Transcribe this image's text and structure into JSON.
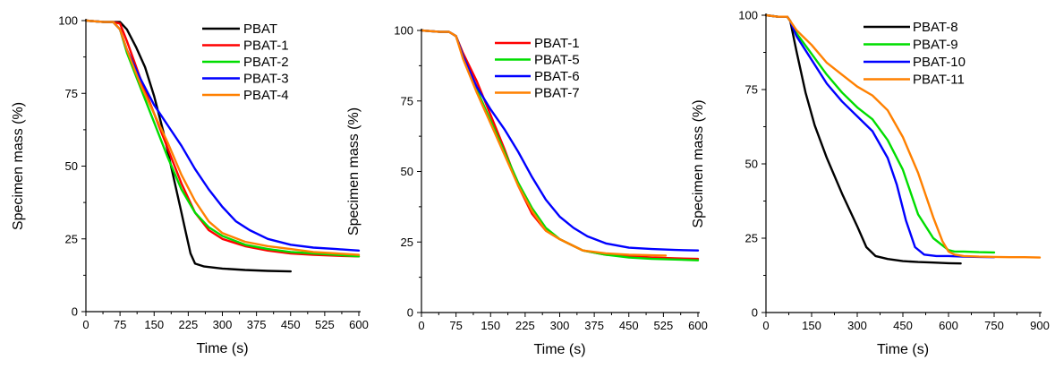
{
  "chart_data": [
    {
      "type": "line",
      "xlabel": "Time (s)",
      "ylabel": "Specimen mass (%)",
      "xlim": [
        0,
        600
      ],
      "ylim": [
        0,
        100
      ],
      "xticks": [
        0,
        75,
        150,
        225,
        300,
        375,
        450,
        525,
        600
      ],
      "yticks": [
        0,
        25,
        50,
        75,
        100
      ],
      "legend_position": "top-right",
      "series": [
        {
          "name": "PBAT",
          "color": "#000000",
          "x": [
            0,
            40,
            60,
            75,
            90,
            110,
            130,
            150,
            170,
            180,
            190,
            200,
            210,
            220,
            230,
            240,
            260,
            300,
            350,
            400,
            450
          ],
          "y": [
            100,
            99.5,
            99.5,
            99.5,
            97,
            91,
            84,
            74,
            62,
            55,
            48,
            41,
            34,
            27,
            20,
            16.5,
            15.5,
            14.8,
            14.3,
            14,
            13.8
          ]
        },
        {
          "name": "PBAT-1",
          "color": "#ff0000",
          "x": [
            0,
            40,
            60,
            75,
            90,
            120,
            150,
            180,
            210,
            240,
            270,
            300,
            350,
            400,
            450,
            500,
            550,
            600
          ],
          "y": [
            100,
            99.5,
            99.5,
            99,
            93,
            80,
            68,
            56,
            44,
            34,
            28,
            25,
            22.5,
            21,
            20,
            19.5,
            19.2,
            19
          ]
        },
        {
          "name": "PBAT-2",
          "color": "#00dd00",
          "x": [
            0,
            40,
            60,
            75,
            90,
            120,
            150,
            180,
            210,
            240,
            270,
            300,
            350,
            400,
            450,
            500,
            550,
            600
          ],
          "y": [
            100,
            99.5,
            99.5,
            97,
            89,
            77,
            65,
            53,
            42,
            34,
            29,
            26,
            23,
            21.5,
            20.5,
            20,
            19.5,
            19
          ]
        },
        {
          "name": "PBAT-3",
          "color": "#0000ff",
          "x": [
            0,
            40,
            60,
            75,
            90,
            120,
            150,
            180,
            210,
            240,
            270,
            300,
            330,
            360,
            400,
            450,
            500,
            550,
            600
          ],
          "y": [
            100,
            99.5,
            99.5,
            97,
            90,
            80,
            71,
            64,
            57,
            49,
            42,
            36,
            31,
            28,
            25,
            23,
            22,
            21.5,
            21
          ]
        },
        {
          "name": "PBAT-4",
          "color": "#ff8000",
          "x": [
            0,
            40,
            60,
            75,
            90,
            120,
            150,
            180,
            210,
            240,
            270,
            300,
            350,
            400,
            450,
            500,
            550,
            600
          ],
          "y": [
            100,
            99.5,
            99.5,
            97,
            90,
            78,
            68,
            58,
            47,
            38,
            31,
            27,
            24,
            22.5,
            21.5,
            20.5,
            20,
            19.5
          ]
        }
      ]
    },
    {
      "type": "line",
      "xlabel": "Time (s)",
      "ylabel": "Specimen mass (%)",
      "xlim": [
        0,
        600
      ],
      "ylim": [
        0,
        100
      ],
      "xticks": [
        0,
        75,
        150,
        225,
        300,
        375,
        450,
        525,
        600
      ],
      "yticks": [
        0,
        25,
        50,
        75,
        100
      ],
      "legend_position": "top-right",
      "series": [
        {
          "name": "PBAT-1",
          "color": "#ff0000",
          "x": [
            0,
            40,
            60,
            75,
            90,
            120,
            150,
            180,
            210,
            240,
            270,
            300,
            350,
            400,
            450,
            500,
            550,
            600
          ],
          "y": [
            100,
            99.5,
            99.5,
            98,
            92,
            82,
            70,
            58,
            45,
            35,
            29,
            26,
            22,
            20.5,
            20,
            19.5,
            19.2,
            19
          ]
        },
        {
          "name": "PBAT-5",
          "color": "#00dd00",
          "x": [
            0,
            40,
            60,
            75,
            90,
            120,
            150,
            180,
            210,
            240,
            270,
            300,
            350,
            400,
            450,
            500,
            550,
            600
          ],
          "y": [
            100,
            99.5,
            99.5,
            98,
            91,
            79,
            68,
            57,
            46,
            37,
            30,
            26,
            22,
            20.5,
            19.5,
            19,
            18.8,
            18.5
          ]
        },
        {
          "name": "PBAT-6",
          "color": "#0000ff",
          "x": [
            0,
            40,
            60,
            75,
            90,
            120,
            150,
            180,
            210,
            240,
            270,
            300,
            330,
            360,
            400,
            450,
            500,
            550,
            600
          ],
          "y": [
            100,
            99.5,
            99.5,
            98,
            91,
            80,
            72,
            65,
            57,
            48,
            40,
            34,
            30,
            27,
            24.5,
            23,
            22.5,
            22.2,
            22
          ]
        },
        {
          "name": "PBAT-7",
          "color": "#ff8000",
          "x": [
            0,
            40,
            60,
            75,
            90,
            120,
            150,
            180,
            210,
            240,
            270,
            300,
            350,
            400,
            450,
            500,
            530
          ],
          "y": [
            100,
            99.5,
            99.5,
            98,
            90,
            78,
            67,
            56,
            45,
            36,
            29,
            26,
            22,
            21,
            20.5,
            20.3,
            20.2
          ]
        }
      ]
    },
    {
      "type": "line",
      "xlabel": "Time (s)",
      "ylabel": "Specimen mass (%)",
      "xlim": [
        0,
        900
      ],
      "ylim": [
        0,
        100
      ],
      "xticks": [
        0,
        150,
        300,
        450,
        600,
        750,
        900
      ],
      "yticks": [
        0,
        25,
        50,
        75,
        100
      ],
      "legend_position": "top-right",
      "series": [
        {
          "name": "PBAT-8",
          "color": "#000000",
          "x": [
            0,
            40,
            70,
            80,
            100,
            130,
            160,
            200,
            250,
            300,
            330,
            360,
            400,
            450,
            500,
            550,
            600,
            640
          ],
          "y": [
            100,
            99.5,
            99.5,
            98,
            88,
            74,
            63,
            52,
            40,
            29,
            22,
            19,
            18,
            17.3,
            17,
            16.8,
            16.6,
            16.5
          ]
        },
        {
          "name": "PBAT-9",
          "color": "#00dd00",
          "x": [
            0,
            40,
            70,
            80,
            100,
            150,
            200,
            250,
            300,
            350,
            400,
            450,
            500,
            550,
            600,
            620,
            650,
            700,
            750
          ],
          "y": [
            100,
            99.5,
            99.5,
            98,
            94,
            87,
            80,
            74,
            69,
            65,
            58,
            48,
            33,
            25,
            21,
            20.5,
            20.5,
            20.3,
            20.2
          ]
        },
        {
          "name": "PBAT-10",
          "color": "#0000ff",
          "x": [
            0,
            40,
            70,
            80,
            100,
            150,
            200,
            250,
            300,
            350,
            400,
            430,
            460,
            490,
            520,
            560,
            600,
            650,
            700,
            750
          ],
          "y": [
            100,
            99.5,
            99.5,
            98,
            93,
            85,
            77,
            71,
            66,
            61,
            52,
            43,
            31,
            22,
            19.5,
            19,
            19,
            18.8,
            18.7,
            18.6
          ]
        },
        {
          "name": "PBAT-11",
          "color": "#ff8000",
          "x": [
            0,
            40,
            70,
            80,
            100,
            150,
            200,
            250,
            300,
            350,
            400,
            450,
            500,
            550,
            580,
            600,
            620,
            650,
            700,
            750,
            800,
            850,
            900
          ],
          "y": [
            100,
            99.5,
            99.5,
            98,
            95,
            90,
            84,
            80,
            76,
            73,
            68,
            59,
            47,
            32,
            24,
            20.5,
            19.5,
            19,
            18.8,
            18.7,
            18.6,
            18.6,
            18.5
          ]
        }
      ]
    }
  ]
}
